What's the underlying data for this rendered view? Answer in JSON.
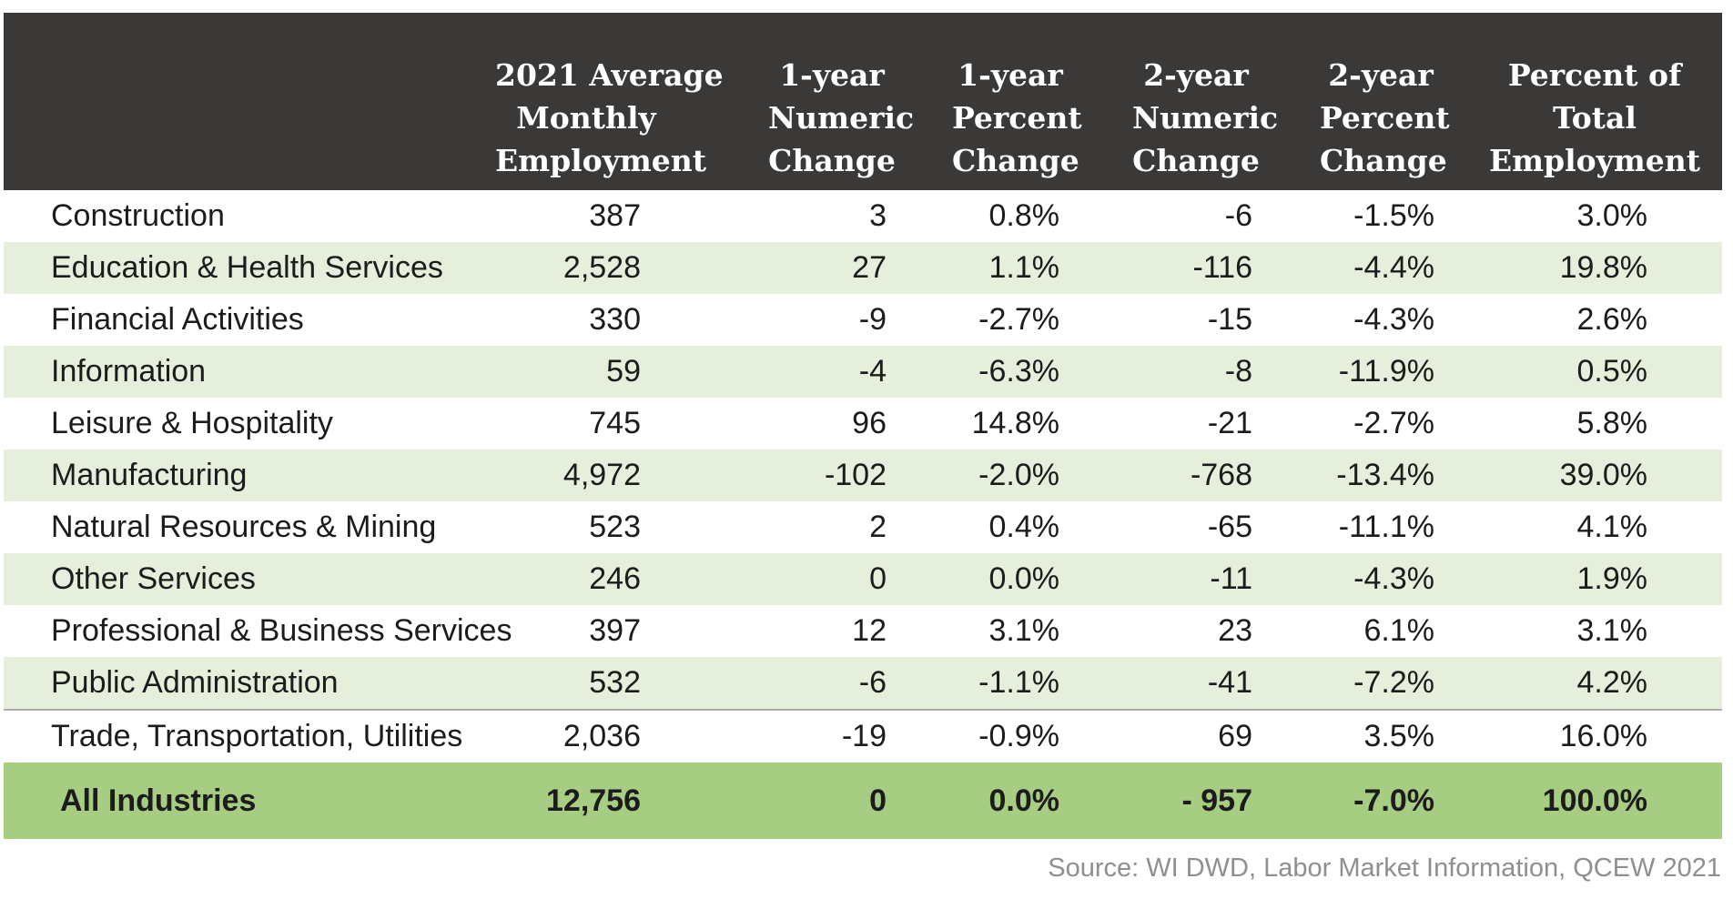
{
  "colors": {
    "header_bg": "#3B3838",
    "header_text": "#ffffff",
    "stripe_green": "#E5EFDC",
    "total_row_green": "#A7CD83",
    "body_text": "#1c1c1c",
    "divider_gray": "#ABABAB",
    "source_text_gray": "#8f8f8f"
  },
  "chart_data": {
    "type": "table",
    "title": "",
    "columns": [
      "",
      "2021 Average\nMonthly\nEmployment",
      "1-year\nNumeric\nChange",
      "1-year\nPercent\nChange",
      "2-year\nNumeric\nChange",
      "2-year\nPercent\nChange",
      "Percent of\nTotal\nEmployment"
    ],
    "rows": [
      [
        "Construction",
        "387",
        "3",
        "0.8%",
        "-6",
        "-1.5%",
        "3.0%"
      ],
      [
        "Education & Health Services",
        "2,528",
        "27",
        "1.1%",
        "-116",
        "-4.4%",
        "19.8%"
      ],
      [
        "Financial Activities",
        "330",
        "-9",
        "-2.7%",
        "-15",
        "-4.3%",
        "2.6%"
      ],
      [
        "Information",
        "59",
        "-4",
        "-6.3%",
        "-8",
        "-11.9%",
        "0.5%"
      ],
      [
        "Leisure & Hospitality",
        "745",
        "96",
        "14.8%",
        "-21",
        "-2.7%",
        "5.8%"
      ],
      [
        "Manufacturing",
        "4,972",
        "-102",
        "-2.0%",
        "-768",
        "-13.4%",
        "39.0%"
      ],
      [
        "Natural Resources & Mining",
        "523",
        "2",
        "0.4%",
        "-65",
        "-11.1%",
        "4.1%"
      ],
      [
        "Other Services",
        "246",
        "0",
        "0.0%",
        "-11",
        "-4.3%",
        "1.9%"
      ],
      [
        "Professional & Business Services",
        "397",
        "12",
        "3.1%",
        "23",
        "6.1%",
        "3.1%"
      ],
      [
        "Public Administration",
        "532",
        "-6",
        "-1.1%",
        "-41",
        "-7.2%",
        "4.2%"
      ],
      [
        "Trade, Transportation, Utilities",
        "2,036",
        "-19",
        "-0.9%",
        "69",
        "3.5%",
        "16.0%"
      ]
    ],
    "total_row": [
      "All Industries",
      "12,756",
      "0",
      "0.0%",
      "- 957",
      "-7.0%",
      "100.0%"
    ],
    "source_note": "Source: WI DWD, Labor Market Information, QCEW 2021"
  }
}
